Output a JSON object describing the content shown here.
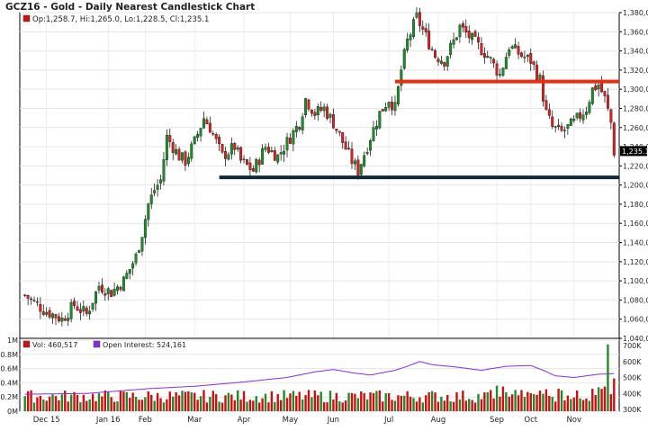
{
  "chart_data": {
    "type": "candlestick",
    "title": "GCZ16 - Gold - Daily Nearest Candlestick Chart",
    "ohlc_readout": "Op:1,258.7, Hi:1,265.0, Lo:1,228.5, Cl:1,235.1",
    "last_price_label": "1,235.1",
    "price_axis": {
      "ylim": [
        1040,
        1380
      ],
      "ticks": [
        "1,040,0",
        "1,060,0",
        "1,080,0",
        "1,100,0",
        "1,120,0",
        "1,140,0",
        "1,160,0",
        "1,180,0",
        "1,200,0",
        "1,220,0",
        "1,240,0",
        "1,260,0",
        "1,280,0",
        "1,300,0",
        "1,320,0",
        "1,340,0",
        "1,360,0",
        "1,380,0"
      ]
    },
    "month_labels": [
      "Dec 15",
      "Jan 16",
      "Feb",
      "Mar",
      "Apr",
      "May",
      "Jun",
      "Jul",
      "Aug",
      "Sep",
      "Oct",
      "Nov"
    ],
    "price_path": [
      [
        0,
        1085
      ],
      [
        6,
        1070
      ],
      [
        12,
        1060
      ],
      [
        16,
        1075
      ],
      [
        20,
        1065
      ],
      [
        24,
        1095
      ],
      [
        28,
        1088
      ],
      [
        32,
        1100
      ],
      [
        36,
        1125
      ],
      [
        38,
        1150
      ],
      [
        40,
        1180
      ],
      [
        42,
        1195
      ],
      [
        44,
        1205
      ],
      [
        46,
        1250
      ],
      [
        50,
        1230
      ],
      [
        52,
        1225
      ],
      [
        55,
        1245
      ],
      [
        58,
        1270
      ],
      [
        60,
        1260
      ],
      [
        64,
        1230
      ],
      [
        68,
        1240
      ],
      [
        70,
        1225
      ],
      [
        74,
        1215
      ],
      [
        78,
        1240
      ],
      [
        82,
        1230
      ],
      [
        86,
        1250
      ],
      [
        89,
        1265
      ],
      [
        91,
        1290
      ],
      [
        94,
        1275
      ],
      [
        97,
        1280
      ],
      [
        100,
        1265
      ],
      [
        103,
        1245
      ],
      [
        106,
        1225
      ],
      [
        108,
        1215
      ],
      [
        112,
        1250
      ],
      [
        115,
        1275
      ],
      [
        118,
        1290
      ],
      [
        120,
        1280
      ],
      [
        122,
        1320
      ],
      [
        124,
        1350
      ],
      [
        127,
        1375
      ],
      [
        130,
        1355
      ],
      [
        133,
        1335
      ],
      [
        136,
        1330
      ],
      [
        139,
        1350
      ],
      [
        141,
        1365
      ],
      [
        144,
        1355
      ],
      [
        147,
        1345
      ],
      [
        150,
        1335
      ],
      [
        154,
        1315
      ],
      [
        157,
        1345
      ],
      [
        161,
        1335
      ],
      [
        164,
        1330
      ],
      [
        167,
        1310
      ],
      [
        169,
        1275
      ],
      [
        171,
        1260
      ],
      [
        174,
        1255
      ],
      [
        178,
        1265
      ],
      [
        182,
        1280
      ],
      [
        184,
        1300
      ],
      [
        186,
        1305
      ],
      [
        188,
        1290
      ],
      [
        190,
        1265
      ],
      [
        191,
        1235
      ]
    ],
    "trendlines": [
      {
        "level": 1308,
        "from_bar": 120,
        "to_bar": 191,
        "color": "#ee2a10"
      },
      {
        "level": 1208,
        "from_bar": 63,
        "to_bar": 191,
        "color": "#0d2a3a"
      }
    ],
    "up_color": "#1e8c28",
    "down_color": "#d82020",
    "volume_panel": {
      "volume_label": "Vol: 460,517",
      "oi_label": "Open Interest: 524,161",
      "vol_color": "#cc1010",
      "oi_color": "#8a2be2",
      "left_ticks": [
        "1M",
        "0.8M",
        "0.6M",
        "0.4M",
        "0.2M",
        "0M"
      ],
      "right_ticks": [
        "700K",
        "600K",
        "500K",
        "400K",
        "300K"
      ],
      "vol_range": [
        0,
        1000000
      ],
      "oi_range": [
        300000,
        700000
      ],
      "oi_path": [
        [
          0,
          395000
        ],
        [
          20,
          400000
        ],
        [
          40,
          430000
        ],
        [
          55,
          445000
        ],
        [
          70,
          470000
        ],
        [
          85,
          500000
        ],
        [
          94,
          535000
        ],
        [
          100,
          550000
        ],
        [
          106,
          530000
        ],
        [
          112,
          515000
        ],
        [
          120,
          545000
        ],
        [
          124,
          570000
        ],
        [
          128,
          600000
        ],
        [
          132,
          580000
        ],
        [
          140,
          565000
        ],
        [
          148,
          545000
        ],
        [
          156,
          570000
        ],
        [
          164,
          575000
        ],
        [
          168,
          545000
        ],
        [
          172,
          510000
        ],
        [
          178,
          500000
        ],
        [
          186,
          520000
        ],
        [
          191,
          524000
        ]
      ]
    }
  }
}
